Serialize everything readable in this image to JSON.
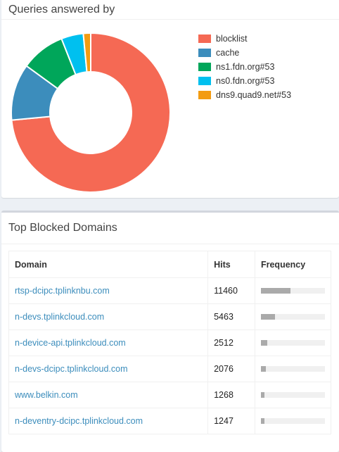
{
  "queries_card": {
    "title": "Queries answered by",
    "chart_data": {
      "type": "pie",
      "style": "donut",
      "categories": [
        "blocklist",
        "cache",
        "ns1.fdn.org#53",
        "ns0.fdn.org#53",
        "dns9.quad9.net#53"
      ],
      "values": [
        73.5,
        11.5,
        9.0,
        4.5,
        1.5
      ],
      "colors": [
        "#f56954",
        "#3c8dbc",
        "#00a65a",
        "#00c0ef",
        "#f39c12"
      ],
      "legend_position": "right"
    }
  },
  "blocked_card": {
    "title": "Top Blocked Domains",
    "columns": [
      "Domain",
      "Hits",
      "Frequency"
    ],
    "rows": [
      {
        "domain": "rtsp-dcipc.tplinknbu.com",
        "hits": "11460",
        "frequency": 0.46
      },
      {
        "domain": "n-devs.tplinkcloud.com",
        "hits": "5463",
        "frequency": 0.22
      },
      {
        "domain": "n-device-api.tplinkcloud.com",
        "hits": "2512",
        "frequency": 0.1
      },
      {
        "domain": "n-devs-dcipc.tplinkcloud.com",
        "hits": "2076",
        "frequency": 0.08
      },
      {
        "domain": "www.belkin.com",
        "hits": "1268",
        "frequency": 0.05
      },
      {
        "domain": "n-deventry-dcipc.tplinkcloud.com",
        "hits": "1247",
        "frequency": 0.05
      }
    ]
  }
}
